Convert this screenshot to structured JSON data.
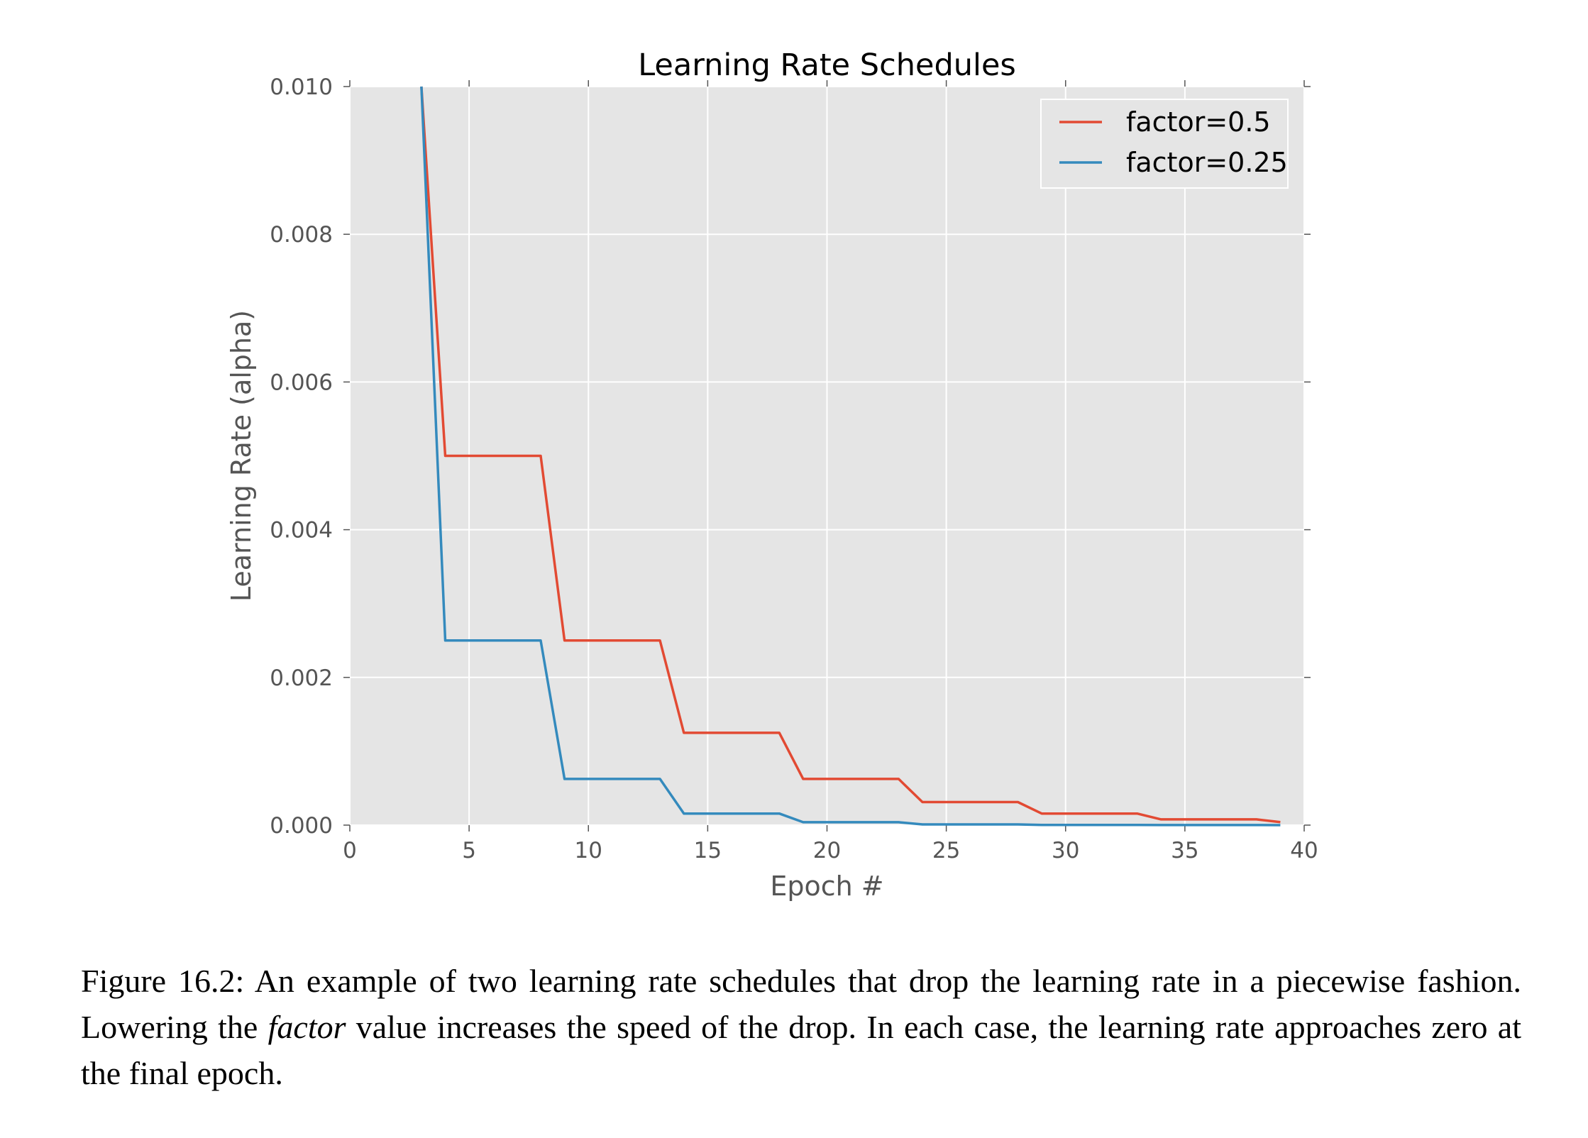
{
  "chart_data": {
    "type": "line",
    "title": "Learning Rate Schedules",
    "xlabel": "Epoch #",
    "ylabel": "Learning Rate (alpha)",
    "xlim": [
      0,
      40
    ],
    "ylim": [
      0,
      0.01
    ],
    "x_ticks": [
      0,
      5,
      10,
      15,
      20,
      25,
      30,
      35,
      40
    ],
    "y_ticks": [
      0.0,
      0.002,
      0.004,
      0.006,
      0.008,
      0.01
    ],
    "x_tick_labels": [
      "0",
      "5",
      "10",
      "15",
      "20",
      "25",
      "30",
      "35",
      "40"
    ],
    "y_tick_labels": [
      "0.000",
      "0.002",
      "0.004",
      "0.006",
      "0.008",
      "0.010"
    ],
    "grid": true,
    "legend_position": "top-right",
    "series": [
      {
        "name": "factor=0.5",
        "color": "#e24a33",
        "x": [
          3,
          4,
          8,
          9,
          13,
          14,
          18,
          19,
          23,
          24,
          28,
          29,
          33,
          34,
          38,
          39
        ],
        "y": [
          0.01,
          0.005,
          0.005,
          0.0025,
          0.0025,
          0.00125,
          0.00125,
          0.000625,
          0.000625,
          0.0003125,
          0.0003125,
          0.00015625,
          0.00015625,
          7.8e-05,
          7.8e-05,
          4e-05
        ]
      },
      {
        "name": "factor=0.25",
        "color": "#348abd",
        "x": [
          3,
          4,
          8,
          9,
          13,
          14,
          18,
          19,
          23,
          24,
          28,
          29,
          33,
          34,
          38,
          39
        ],
        "y": [
          0.01,
          0.0025,
          0.0025,
          0.000625,
          0.000625,
          0.00015625,
          0.00015625,
          3.9e-05,
          3.9e-05,
          1e-05,
          1e-05,
          2.4e-06,
          2.4e-06,
          6e-07,
          6e-07,
          1.5e-07
        ]
      }
    ]
  },
  "caption": {
    "lead": "Figure 16.2: An example of two learning rate schedules that drop the learning rate in a piecewise fashion. Lowering the ",
    "emphasis": "factor",
    "tail": " value increases the speed of the drop. In each case, the learning rate approaches zero at the final epoch."
  }
}
